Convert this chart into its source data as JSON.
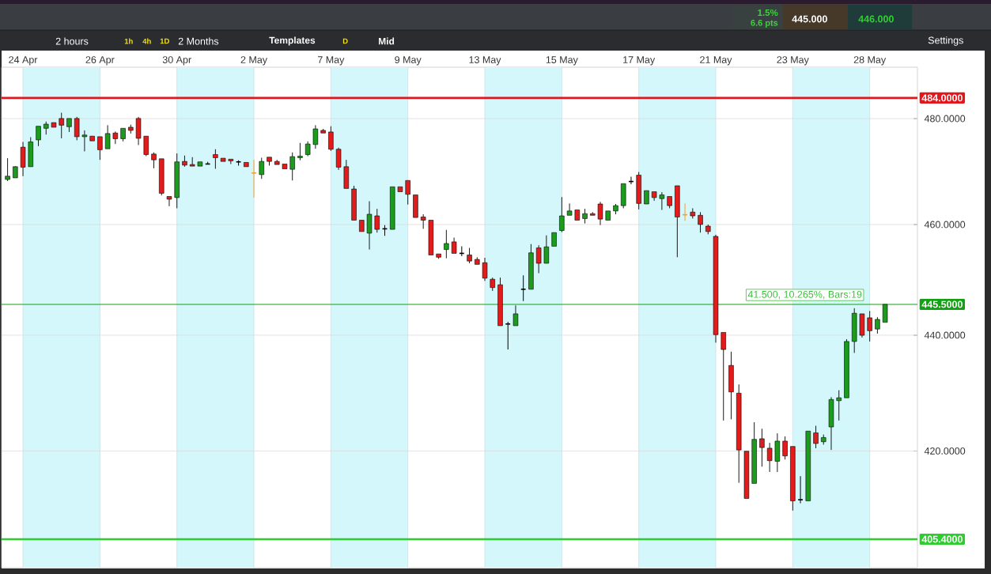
{
  "chart_data": {
    "type": "candlestick",
    "categories": [
      null,
      null,
      "24 Apr",
      null,
      null,
      null,
      null,
      null,
      null,
      null,
      null,
      null,
      "26 Apr",
      null,
      null,
      null,
      null,
      null,
      null,
      null,
      null,
      null,
      "30 Apr",
      null,
      null,
      null,
      null,
      null,
      null,
      null,
      null,
      null,
      "2 May",
      null,
      null,
      null,
      null,
      null,
      null,
      null,
      null,
      null,
      "7 May",
      null,
      null,
      null,
      null,
      null,
      null,
      null,
      null,
      null,
      "9 May",
      null,
      null,
      null,
      null,
      null,
      null,
      null,
      null,
      null,
      "13 May",
      null,
      null,
      null,
      null,
      null,
      null,
      null,
      null,
      null,
      "15 May",
      null,
      null,
      null,
      null,
      null,
      null,
      null,
      null,
      null,
      "17 May",
      null,
      null,
      null,
      null,
      null,
      null,
      null,
      null,
      null,
      "21 May",
      null,
      null,
      null,
      null,
      null,
      null,
      null,
      null,
      null,
      "23 May",
      null,
      null,
      null,
      null,
      null,
      null,
      null,
      null,
      null,
      "28 May",
      null,
      null
    ],
    "ohlc": [
      [
        468.4,
        472.4,
        468.1,
        469.0
      ],
      [
        468.7,
        470.9,
        468.7,
        470.8
      ],
      [
        474.5,
        475.5,
        469.0,
        470.7
      ],
      [
        470.8,
        476.4,
        470.8,
        475.5
      ],
      [
        475.9,
        478.5,
        474.7,
        478.5
      ],
      [
        478.1,
        479.4,
        476.9,
        478.9
      ],
      [
        479.2,
        479.2,
        478.3,
        478.3
      ],
      [
        480.0,
        481.1,
        476.2,
        478.7
      ],
      [
        478.4,
        480.0,
        477.4,
        480.0
      ],
      [
        480.0,
        480.3,
        475.8,
        476.5
      ],
      [
        476.5,
        477.7,
        473.7,
        476.8
      ],
      [
        476.6,
        476.6,
        475.7,
        475.7
      ],
      [
        476.5,
        476.5,
        472.1,
        474.0
      ],
      [
        474.2,
        478.7,
        474.2,
        477.1
      ],
      [
        477.2,
        477.5,
        475.1,
        476.1
      ],
      [
        476.1,
        478.1,
        475.6,
        478.1
      ],
      [
        478.3,
        478.8,
        477.1,
        477.7
      ],
      [
        480.0,
        480.3,
        474.9,
        476.2
      ],
      [
        476.6,
        476.6,
        472.8,
        473.1
      ],
      [
        473.2,
        473.5,
        470.5,
        472.1
      ],
      [
        472.3,
        472.3,
        465.4,
        465.8
      ],
      [
        465.2,
        465.2,
        463.4,
        464.7
      ],
      [
        465.0,
        473.3,
        463.0,
        471.7
      ],
      [
        471.8,
        472.9,
        470.8,
        471.1
      ],
      [
        471.2,
        472.6,
        470.9,
        470.9
      ],
      [
        470.9,
        471.7,
        470.9,
        471.7
      ],
      [
        471.3,
        471.7,
        471.2,
        471.3
      ],
      [
        473.1,
        474.1,
        470.4,
        472.5
      ],
      [
        472.4,
        472.4,
        471.8,
        471.8
      ],
      [
        472.2,
        472.2,
        471.3,
        471.9
      ],
      [
        471.7,
        472.0,
        471.0,
        471.7
      ],
      [
        471.6,
        471.6,
        470.8,
        470.8
      ],
      [
        469.6,
        472.1,
        465.0,
        469.6
      ],
      [
        469.3,
        472.5,
        468.5,
        471.8
      ],
      [
        472.6,
        472.6,
        471.0,
        471.8
      ],
      [
        471.8,
        472.1,
        471.2,
        471.2
      ],
      [
        471.3,
        471.3,
        470.4,
        470.4
      ],
      [
        470.3,
        473.5,
        468.2,
        472.7
      ],
      [
        472.5,
        475.3,
        472.0,
        472.8
      ],
      [
        473.1,
        475.6,
        472.8,
        475.1
      ],
      [
        475.0,
        478.7,
        474.2,
        478.0
      ],
      [
        477.7,
        478.0,
        477.2,
        477.2
      ],
      [
        477.4,
        478.5,
        473.8,
        474.1
      ],
      [
        474.1,
        474.4,
        470.2,
        470.7
      ],
      [
        470.8,
        472.1,
        466.7,
        466.7
      ],
      [
        466.6,
        467.2,
        460.8,
        460.8
      ],
      [
        460.8,
        460.8,
        458.7,
        458.7
      ],
      [
        458.4,
        464.3,
        455.4,
        461.9
      ],
      [
        461.6,
        462.9,
        458.5,
        459.1
      ],
      [
        459.2,
        459.9,
        457.9,
        459.2
      ],
      [
        459.1,
        467.0,
        459.1,
        467.0
      ],
      [
        467.0,
        467.0,
        466.1,
        466.1
      ],
      [
        468.2,
        468.2,
        463.7,
        465.6
      ],
      [
        465.5,
        465.5,
        461.3,
        461.3
      ],
      [
        461.4,
        461.9,
        459.2,
        460.8
      ],
      [
        460.8,
        460.8,
        454.4,
        454.4
      ],
      [
        454.6,
        454.6,
        453.7,
        454.0
      ],
      [
        455.4,
        459.0,
        453.8,
        456.5
      ],
      [
        456.8,
        457.6,
        454.7,
        454.7
      ],
      [
        454.7,
        456.0,
        454.2,
        454.7
      ],
      [
        454.4,
        455.7,
        452.9,
        453.3
      ],
      [
        453.6,
        454.0,
        452.7,
        452.7
      ],
      [
        453.0,
        453.9,
        449.7,
        450.2
      ],
      [
        450.0,
        450.3,
        447.9,
        448.5
      ],
      [
        449.0,
        450.3,
        441.7,
        441.7
      ],
      [
        442.0,
        442.4,
        437.5,
        442.0
      ],
      [
        441.7,
        445.3,
        441.7,
        443.8
      ],
      [
        448.2,
        450.7,
        446.1,
        448.2
      ],
      [
        448.2,
        456.4,
        448.2,
        454.8
      ],
      [
        455.7,
        456.2,
        451.1,
        452.9
      ],
      [
        452.9,
        458.0,
        452.9,
        455.9
      ],
      [
        456.0,
        458.5,
        456.0,
        458.5
      ],
      [
        458.9,
        465.1,
        458.6,
        461.6
      ],
      [
        461.7,
        463.9,
        461.7,
        462.5
      ],
      [
        462.7,
        462.7,
        460.8,
        460.8
      ],
      [
        461.1,
        462.9,
        460.2,
        462.0
      ],
      [
        462.0,
        462.3,
        461.7,
        461.7
      ],
      [
        463.8,
        464.2,
        459.9,
        461.0
      ],
      [
        460.8,
        462.5,
        460.8,
        462.5
      ],
      [
        462.5,
        463.8,
        461.9,
        463.5
      ],
      [
        463.5,
        467.6,
        463.0,
        467.6
      ],
      [
        468.0,
        468.9,
        467.5,
        468.0
      ],
      [
        469.2,
        469.8,
        462.8,
        463.9
      ],
      [
        463.8,
        466.3,
        463.8,
        466.3
      ],
      [
        466.1,
        466.1,
        464.4,
        465.0
      ],
      [
        464.8,
        466.0,
        462.7,
        465.5
      ],
      [
        465.2,
        465.2,
        463.0,
        463.5
      ],
      [
        467.2,
        467.2,
        454.0,
        461.4
      ],
      [
        461.8,
        463.9,
        460.7,
        461.8
      ],
      [
        462.3,
        463.0,
        461.1,
        461.6
      ],
      [
        461.7,
        462.3,
        458.5,
        460.0
      ],
      [
        459.7,
        460.0,
        458.2,
        458.7
      ],
      [
        457.8,
        458.1,
        438.7,
        440.1
      ],
      [
        440.5,
        440.5,
        425.2,
        437.5
      ],
      [
        434.7,
        437.1,
        425.4,
        430.1
      ],
      [
        429.9,
        431.4,
        414.7,
        420.2
      ],
      [
        420.0,
        420.0,
        412.1,
        412.1
      ],
      [
        414.6,
        424.9,
        414.6,
        422.0
      ],
      [
        422.1,
        423.8,
        417.4,
        420.6
      ],
      [
        420.5,
        421.4,
        416.5,
        418.4
      ],
      [
        418.3,
        423.0,
        416.5,
        421.7
      ],
      [
        421.7,
        422.5,
        418.6,
        419.2
      ],
      [
        420.8,
        420.8,
        410.1,
        411.7
      ],
      [
        411.9,
        415.8,
        411.3,
        411.9
      ],
      [
        411.7,
        423.4,
        411.7,
        423.4
      ],
      [
        423.1,
        424.3,
        420.5,
        421.3
      ],
      [
        421.6,
        422.8,
        421.1,
        422.3
      ],
      [
        424.1,
        429.2,
        420.2,
        428.8
      ],
      [
        428.6,
        430.4,
        425.2,
        429.1
      ],
      [
        429.1,
        439.3,
        429.1,
        438.9
      ],
      [
        438.9,
        444.8,
        436.9,
        443.9
      ],
      [
        443.8,
        443.8,
        439.6,
        440.0
      ],
      [
        443.1,
        444.3,
        438.9,
        440.8
      ],
      [
        441.1,
        443.2,
        440.3,
        442.8
      ],
      [
        442.3,
        445.5,
        442.3,
        445.5
      ]
    ],
    "colors": [
      "#1c9c1c",
      "#1c9c1c",
      "#e41b1b",
      "#1c9c1c",
      "#1c9c1c",
      "#1c9c1c",
      "#e41b1b",
      "#e41b1b",
      "#1c9c1c",
      "#e41b1b",
      "#1c9c1c",
      "#e41b1b",
      "#e41b1b",
      "#1c9c1c",
      "#e41b1b",
      "#1c9c1c",
      "#e41b1b",
      "#e41b1b",
      "#e41b1b",
      "#e41b1b",
      "#e41b1b",
      "#e41b1b",
      "#1c9c1c",
      "#e41b1b",
      "#e41b1b",
      "#1c9c1c",
      "#000000",
      "#e41b1b",
      "#e41b1b",
      "#e41b1b",
      "#000000",
      "#e41b1b",
      "#f0a030",
      "#1c9c1c",
      "#e41b1b",
      "#e41b1b",
      "#e41b1b",
      "#1c9c1c",
      "#1c9c1c",
      "#1c9c1c",
      "#1c9c1c",
      "#e41b1b",
      "#e41b1b",
      "#e41b1b",
      "#e41b1b",
      "#e41b1b",
      "#e41b1b",
      "#1c9c1c",
      "#e41b1b",
      "#000000",
      "#1c9c1c",
      "#e41b1b",
      "#e41b1b",
      "#e41b1b",
      "#e41b1b",
      "#e41b1b",
      "#e41b1b",
      "#1c9c1c",
      "#e41b1b",
      "#000000",
      "#e41b1b",
      "#e41b1b",
      "#e41b1b",
      "#e41b1b",
      "#e41b1b",
      "#000000",
      "#1c9c1c",
      "#000000",
      "#1c9c1c",
      "#e41b1b",
      "#1c9c1c",
      "#1c9c1c",
      "#1c9c1c",
      "#1c9c1c",
      "#e41b1b",
      "#1c9c1c",
      "#e41b1b",
      "#e41b1b",
      "#1c9c1c",
      "#1c9c1c",
      "#1c9c1c",
      "#000000",
      "#e41b1b",
      "#1c9c1c",
      "#e41b1b",
      "#1c9c1c",
      "#e41b1b",
      "#e41b1b",
      "#f0a030",
      "#e41b1b",
      "#e41b1b",
      "#e41b1b",
      "#e41b1b",
      "#e41b1b",
      "#e41b1b",
      "#e41b1b",
      "#e41b1b",
      "#1c9c1c",
      "#e41b1b",
      "#e41b1b",
      "#1c9c1c",
      "#e41b1b",
      "#e41b1b",
      "#000000",
      "#1c9c1c",
      "#e41b1b",
      "#1c9c1c",
      "#1c9c1c",
      "#1c9c1c",
      "#1c9c1c",
      "#1c9c1c",
      "#e41b1b",
      "#e41b1b",
      "#1c9c1c",
      "#1c9c1c"
    ],
    "ylim": [
      400.8,
      490
    ],
    "yticks": [
      {
        "value": 420,
        "label": "420.0000"
      },
      {
        "value": 440,
        "label": "440.0000"
      },
      {
        "value": 460,
        "label": "460.0000"
      },
      {
        "value": 480,
        "label": "480.0000"
      }
    ],
    "log": "y",
    "grid": true,
    "bands": [
      {
        "axis": "x",
        "from": "24 Apr",
        "to": "26 Apr",
        "color": "#d4f7fb"
      },
      {
        "axis": "x",
        "from": "30 Apr",
        "to": "2 May",
        "color": "#d4f7fb"
      },
      {
        "axis": "x",
        "from": "7 May",
        "to": "9 May",
        "color": "#d4f7fb"
      },
      {
        "axis": "x",
        "from": "13 May",
        "to": "15 May",
        "color": "#d4f7fb"
      },
      {
        "axis": "x",
        "from": "17 May",
        "to": "21 May",
        "color": "#d4f7fb"
      },
      {
        "axis": "x",
        "from": "23 May",
        "to": "28 May",
        "color": "#d4f7fb"
      }
    ],
    "ref_lines": [
      {
        "axis": "y",
        "value": 484,
        "label": "484.0000",
        "color": "#e3171b"
      },
      {
        "axis": "y",
        "value": 445.5,
        "label": "445.5000",
        "color": "#14a014"
      },
      {
        "axis": "y",
        "value": 405.4,
        "label": "405.4000",
        "color": "#2ecc2e"
      }
    ],
    "annotations": [
      "41.500, 10.265%, Bars:19",
      "1.5%",
      "6.6 pts",
      "445.000",
      "446.000",
      "2 hours",
      "1h",
      "4h",
      "1D",
      "2 Months",
      "Templates",
      "D",
      "Mid",
      "Settings"
    ]
  }
}
